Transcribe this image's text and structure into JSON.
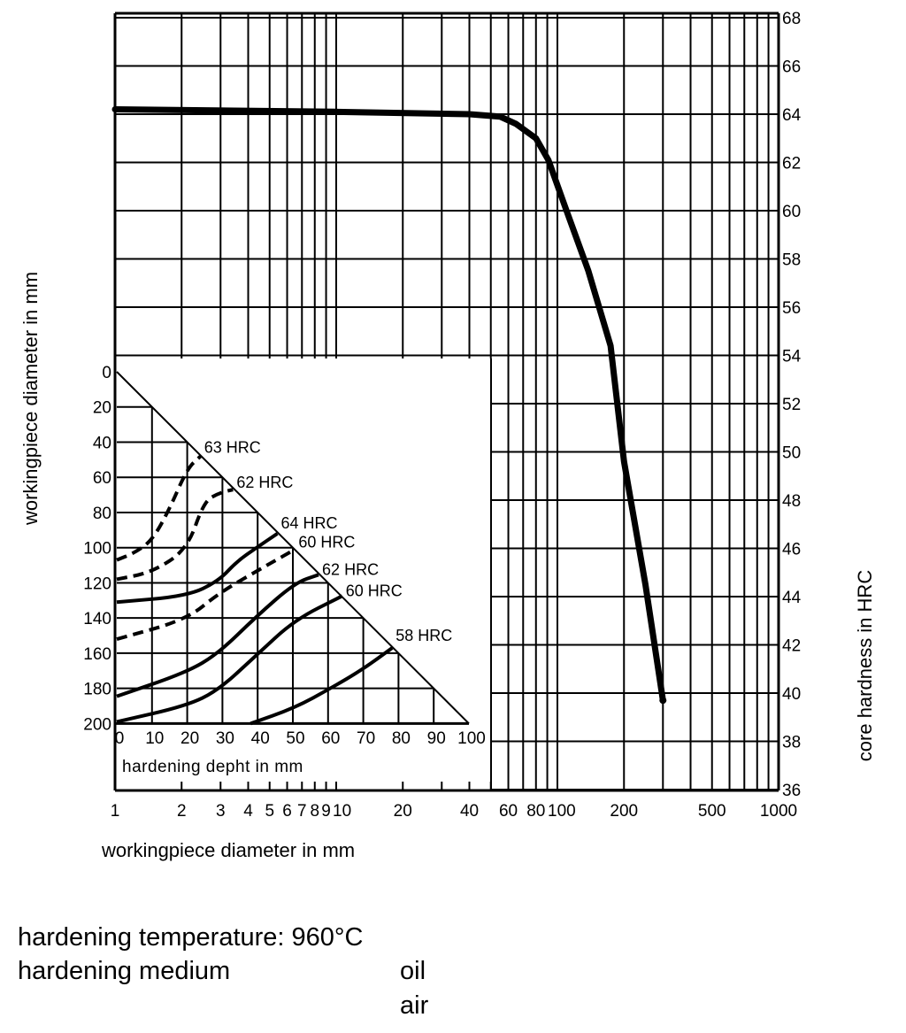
{
  "chart_data": [
    {
      "type": "line",
      "xlabel": "workingpiece diameter in mm",
      "ylabel": "core hardness in HRC",
      "x_scale": "log",
      "xlim": [
        1,
        1200
      ],
      "ylim": [
        36,
        68
      ],
      "grid": true,
      "x_ticks": [
        1,
        2,
        3,
        4,
        5,
        6,
        7,
        8,
        9,
        10,
        20,
        40,
        60,
        80,
        100,
        200,
        500,
        1000
      ],
      "y_ticks": [
        36,
        38,
        40,
        42,
        44,
        46,
        48,
        50,
        52,
        54,
        56,
        58,
        60,
        62,
        64,
        66,
        68
      ],
      "series": [
        {
          "x": [
            1,
            10,
            40,
            55,
            65,
            80,
            91,
            110,
            138,
            174,
            200,
            250,
            300
          ],
          "y": [
            64.2,
            64.1,
            64.0,
            63.9,
            63.6,
            63.0,
            62.1,
            60.0,
            57.5,
            54.4,
            49.6,
            44.5,
            39.7
          ]
        }
      ]
    },
    {
      "type": "line",
      "xlabel": "hardening depht in mm",
      "ylabel": "workingpiece diameter in mm",
      "xlim": [
        0,
        100
      ],
      "ylim": [
        0,
        200
      ],
      "y_inverted": true,
      "grid": true,
      "x_ticks": [
        0,
        10,
        20,
        30,
        40,
        50,
        60,
        70,
        80,
        90,
        100
      ],
      "y_ticks": [
        0,
        20,
        40,
        60,
        80,
        100,
        120,
        140,
        160,
        180,
        200
      ],
      "boundary_line": {
        "x": [
          0,
          100
        ],
        "y": [
          0,
          200
        ]
      },
      "series": [
        {
          "name": "63 HRC",
          "style": "dashed",
          "x": [
            0,
            5,
            10,
            15,
            20,
            23.8
          ],
          "y": [
            107,
            103,
            96,
            78,
            55,
            48
          ]
        },
        {
          "name": "62 HRC",
          "style": "dashed",
          "x": [
            0,
            10,
            20,
            24.7,
            28.9,
            33
          ],
          "y": [
            118,
            114,
            101,
            74,
            69,
            67
          ]
        },
        {
          "name": "64 HRC",
          "style": "solid",
          "x": [
            0,
            20,
            28.9,
            34,
            39.7,
            45.6
          ],
          "y": [
            131,
            127.5,
            119,
            108,
            100,
            92
          ]
        },
        {
          "name": "60 HRC",
          "style": "dashed",
          "x": [
            0,
            19.7,
            28.9,
            40,
            50.6
          ],
          "y": [
            152,
            141,
            126,
            113,
            101
          ]
        },
        {
          "name": "62 HRC",
          "style": "solid",
          "x": [
            0,
            19.7,
            28.9,
            39.7,
            50.6,
            57.3
          ],
          "y": [
            184.5,
            171,
            160,
            139,
            120,
            115.4
          ]
        },
        {
          "name": "60 HRC",
          "style": "solid",
          "x": [
            0,
            19.7,
            28.9,
            39.7,
            50.6,
            64
          ],
          "y": [
            199,
            190,
            181,
            161,
            141,
            127.5
          ]
        },
        {
          "name": "58 HRC",
          "style": "solid",
          "x": [
            38,
            50.6,
            60.7,
            70,
            78.2
          ],
          "y": [
            200,
            191,
            180,
            169,
            157
          ]
        }
      ]
    }
  ],
  "notes": {
    "line1": "hardening temperature: 960°C",
    "line2_label": "hardening medium",
    "oil": "oil",
    "air": "air"
  }
}
